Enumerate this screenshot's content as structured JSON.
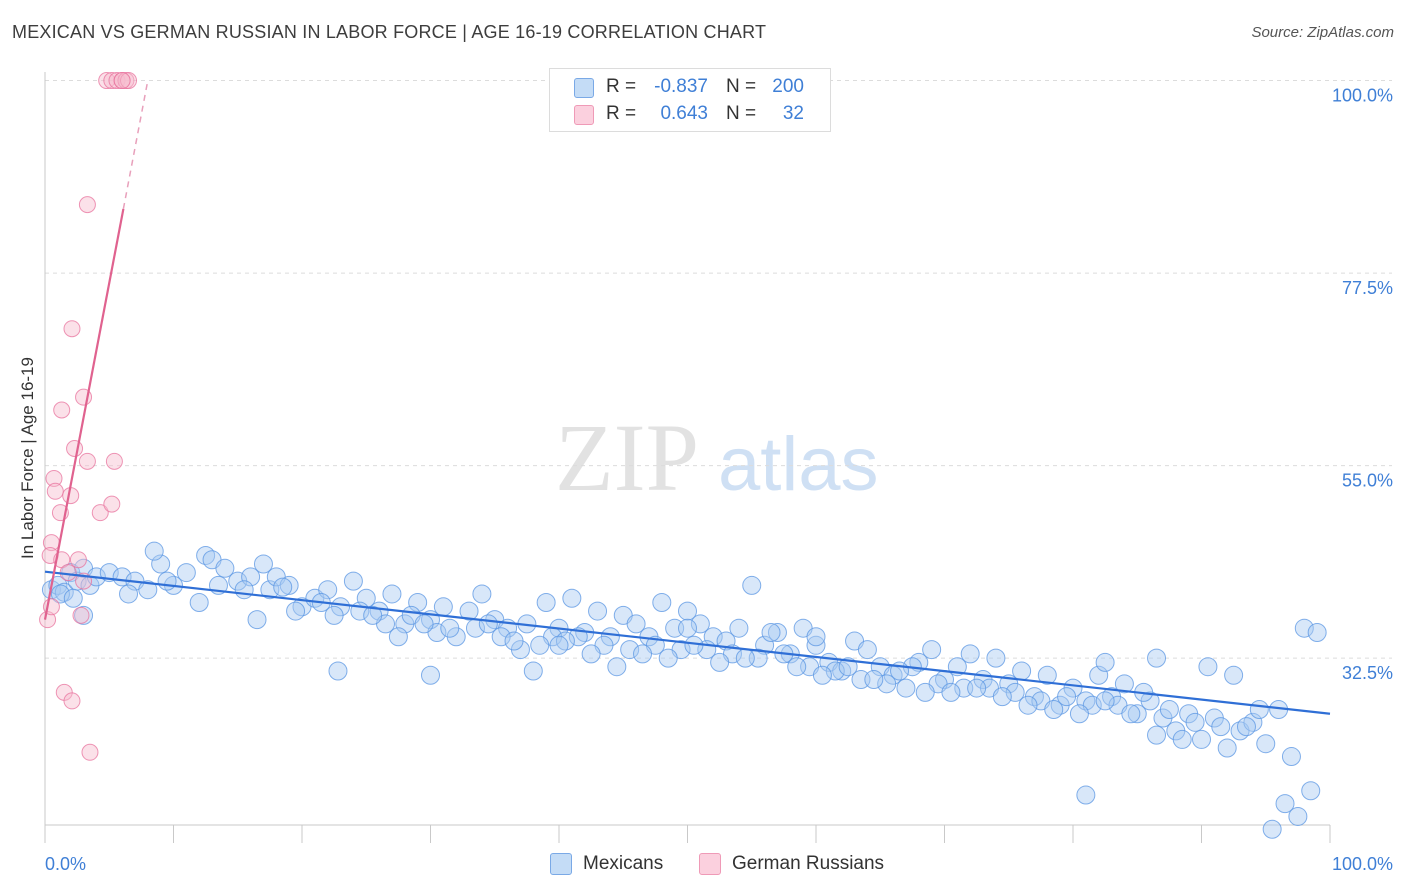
{
  "header": {
    "title": "MEXICAN VS GERMAN RUSSIAN IN LABOR FORCE | AGE 16-19 CORRELATION CHART",
    "source": "Source: ZipAtlas.com"
  },
  "watermark": {
    "zip": "ZIP",
    "atlas": "atlas"
  },
  "legend_stats": [
    {
      "r_label": "R =",
      "r_value": "-0.837",
      "n_label": "N =",
      "n_value": "200",
      "color": "#a9c9f2"
    },
    {
      "r_label": "R =",
      "r_value": "0.643",
      "n_label": "N =",
      "n_value": "32",
      "color": "#f7bccf"
    }
  ],
  "legend": [
    {
      "label": "Mexicans",
      "color": "#a9c9f2"
    },
    {
      "label": "German Russians",
      "color": "#f7bccf"
    }
  ],
  "chart_data": {
    "type": "scatter",
    "title": "MEXICAN VS GERMAN RUSSIAN IN LABOR FORCE | AGE 16-19 CORRELATION CHART",
    "xlabel": "",
    "ylabel": "In Labor Force | Age 16-19",
    "xlim": [
      0,
      100
    ],
    "ylim": [
      13,
      101
    ],
    "x_tick_labels": [
      "0.0%",
      "100.0%"
    ],
    "y_tick_values": [
      32.5,
      55.0,
      77.5,
      100.0
    ],
    "y_tick_labels": [
      "32.5%",
      "55.0%",
      "77.5%",
      "100.0%"
    ],
    "grid": "horizontal dashed",
    "legend_position": "bottom-center",
    "colors": {
      "mexicans": "#5a96e3",
      "mexicans_fill": "#a9c9f2",
      "german_russians": "#e8739d",
      "german_russians_fill": "#f7bccf"
    },
    "series": [
      {
        "name": "Mexicans",
        "trendline": {
          "x": [
            0,
            100
          ],
          "y": [
            42.6,
            26.0
          ]
        },
        "points": [
          [
            0.5,
            40.5
          ],
          [
            1.0,
            41.0
          ],
          [
            1.5,
            40.2
          ],
          [
            2.0,
            42.5
          ],
          [
            2.5,
            41.5
          ],
          [
            3.0,
            43.0
          ],
          [
            3.5,
            41.0
          ],
          [
            4.0,
            42.0
          ],
          [
            5.0,
            42.5
          ],
          [
            6.0,
            42.0
          ],
          [
            7.0,
            41.5
          ],
          [
            8.0,
            40.5
          ],
          [
            9.0,
            43.5
          ],
          [
            10.0,
            41.0
          ],
          [
            8.5,
            45.0
          ],
          [
            11.0,
            42.5
          ],
          [
            12.0,
            39.0
          ],
          [
            12.5,
            44.5
          ],
          [
            13.0,
            44.0
          ],
          [
            13.5,
            41.0
          ],
          [
            14.0,
            43.0
          ],
          [
            15.0,
            41.5
          ],
          [
            16.0,
            42.0
          ],
          [
            17.0,
            43.5
          ],
          [
            17.5,
            40.5
          ],
          [
            18.0,
            42.0
          ],
          [
            19.0,
            41.0
          ],
          [
            20.0,
            38.5
          ],
          [
            21.0,
            39.5
          ],
          [
            22.0,
            40.5
          ],
          [
            23.0,
            38.5
          ],
          [
            24.0,
            41.5
          ],
          [
            25.0,
            39.5
          ],
          [
            26.0,
            38.0
          ],
          [
            27.0,
            40.0
          ],
          [
            28.0,
            36.5
          ],
          [
            29.0,
            39.0
          ],
          [
            30.0,
            37.0
          ],
          [
            31.0,
            38.5
          ],
          [
            32.0,
            35.0
          ],
          [
            33.0,
            38.0
          ],
          [
            34.0,
            40.0
          ],
          [
            35.0,
            37.0
          ],
          [
            36.0,
            36.0
          ],
          [
            37.0,
            33.5
          ],
          [
            38.0,
            31.0
          ],
          [
            39.0,
            39.0
          ],
          [
            40.0,
            36.0
          ],
          [
            41.0,
            39.5
          ],
          [
            42.0,
            35.5
          ],
          [
            43.0,
            38.0
          ],
          [
            44.0,
            35.0
          ],
          [
            45.0,
            37.5
          ],
          [
            46.0,
            36.5
          ],
          [
            47.0,
            35.0
          ],
          [
            48.0,
            39.0
          ],
          [
            49.0,
            36.0
          ],
          [
            50.0,
            38.0
          ],
          [
            51.0,
            36.5
          ],
          [
            52.0,
            35.0
          ],
          [
            53.0,
            34.5
          ],
          [
            54.0,
            36.0
          ],
          [
            55.0,
            41.0
          ],
          [
            56.0,
            34.0
          ],
          [
            57.0,
            35.5
          ],
          [
            58.0,
            33.0
          ],
          [
            59.0,
            36.0
          ],
          [
            60.0,
            34.0
          ],
          [
            61.0,
            32.0
          ],
          [
            62.0,
            31.0
          ],
          [
            63.0,
            34.5
          ],
          [
            64.0,
            33.5
          ],
          [
            65.0,
            31.5
          ],
          [
            66.0,
            30.5
          ],
          [
            67.0,
            29.0
          ],
          [
            68.0,
            32.0
          ],
          [
            69.0,
            33.5
          ],
          [
            70.0,
            30.0
          ],
          [
            71.0,
            31.5
          ],
          [
            72.0,
            33.0
          ],
          [
            73.0,
            30.0
          ],
          [
            74.0,
            32.5
          ],
          [
            75.0,
            29.5
          ],
          [
            76.0,
            31.0
          ],
          [
            77.0,
            28.0
          ],
          [
            78.0,
            30.5
          ],
          [
            79.0,
            27.0
          ],
          [
            80.0,
            29.0
          ],
          [
            81.0,
            27.5
          ],
          [
            82.0,
            30.5
          ],
          [
            83.0,
            28.0
          ],
          [
            84.0,
            29.5
          ],
          [
            85.0,
            26.0
          ],
          [
            86.0,
            27.5
          ],
          [
            87.0,
            25.5
          ],
          [
            88.0,
            24.0
          ],
          [
            89.0,
            26.0
          ],
          [
            90.0,
            23.0
          ],
          [
            91.0,
            25.5
          ],
          [
            92.0,
            22.0
          ],
          [
            93.0,
            24.0
          ],
          [
            94.0,
            25.0
          ],
          [
            95.0,
            22.5
          ],
          [
            96.0,
            26.5
          ],
          [
            97.0,
            21.0
          ],
          [
            98.0,
            36.0
          ],
          [
            99.0,
            35.5
          ],
          [
            90.5,
            31.5
          ],
          [
            92.5,
            30.5
          ],
          [
            86.5,
            32.5
          ],
          [
            82.5,
            32.0
          ],
          [
            81.0,
            16.5
          ],
          [
            96.5,
            15.5
          ],
          [
            97.5,
            14.0
          ],
          [
            98.5,
            17.0
          ],
          [
            95.5,
            12.5
          ],
          [
            3.0,
            37.5
          ],
          [
            1.2,
            40.0
          ],
          [
            2.2,
            39.5
          ],
          [
            6.5,
            40.0
          ],
          [
            9.5,
            41.5
          ],
          [
            15.5,
            40.5
          ],
          [
            18.5,
            40.8
          ],
          [
            21.5,
            39.0
          ],
          [
            24.5,
            38.0
          ],
          [
            26.5,
            36.5
          ],
          [
            28.5,
            37.5
          ],
          [
            30.5,
            35.5
          ],
          [
            33.5,
            36.0
          ],
          [
            35.5,
            35.0
          ],
          [
            37.5,
            36.5
          ],
          [
            39.5,
            35.0
          ],
          [
            41.5,
            35.0
          ],
          [
            43.5,
            34.0
          ],
          [
            45.5,
            33.5
          ],
          [
            47.5,
            34.0
          ],
          [
            49.5,
            33.5
          ],
          [
            51.5,
            33.5
          ],
          [
            53.5,
            33.0
          ],
          [
            55.5,
            32.5
          ],
          [
            57.5,
            33.0
          ],
          [
            59.5,
            31.5
          ],
          [
            61.5,
            31.0
          ],
          [
            63.5,
            30.0
          ],
          [
            65.5,
            29.5
          ],
          [
            67.5,
            31.5
          ],
          [
            69.5,
            29.5
          ],
          [
            71.5,
            29.0
          ],
          [
            73.5,
            29.0
          ],
          [
            75.5,
            28.5
          ],
          [
            77.5,
            27.5
          ],
          [
            79.5,
            28.0
          ],
          [
            81.5,
            27.0
          ],
          [
            83.5,
            27.0
          ],
          [
            85.5,
            28.5
          ],
          [
            87.5,
            26.5
          ],
          [
            89.5,
            25.0
          ],
          [
            91.5,
            24.5
          ],
          [
            93.5,
            24.5
          ],
          [
            94.5,
            26.5
          ],
          [
            16.5,
            37.0
          ],
          [
            19.5,
            38.0
          ],
          [
            22.5,
            37.5
          ],
          [
            25.5,
            37.5
          ],
          [
            27.5,
            35.0
          ],
          [
            29.5,
            36.5
          ],
          [
            31.5,
            36.0
          ],
          [
            34.5,
            36.5
          ],
          [
            36.5,
            34.5
          ],
          [
            38.5,
            34.0
          ],
          [
            40.5,
            34.5
          ],
          [
            42.5,
            33.0
          ],
          [
            44.5,
            31.5
          ],
          [
            46.5,
            33.0
          ],
          [
            48.5,
            32.5
          ],
          [
            50.5,
            34.0
          ],
          [
            52.5,
            32.0
          ],
          [
            54.5,
            32.5
          ],
          [
            56.5,
            35.5
          ],
          [
            58.5,
            31.5
          ],
          [
            60.5,
            30.5
          ],
          [
            62.5,
            31.5
          ],
          [
            64.5,
            30.0
          ],
          [
            66.5,
            31.0
          ],
          [
            68.5,
            28.5
          ],
          [
            70.5,
            28.5
          ],
          [
            72.5,
            29.0
          ],
          [
            74.5,
            28.0
          ],
          [
            76.5,
            27.0
          ],
          [
            78.5,
            26.5
          ],
          [
            80.5,
            26.0
          ],
          [
            82.5,
            27.5
          ],
          [
            84.5,
            26.0
          ],
          [
            86.5,
            23.5
          ],
          [
            88.5,
            23.0
          ],
          [
            22.8,
            31.0
          ],
          [
            30.0,
            30.5
          ],
          [
            40.0,
            34.0
          ],
          [
            50.0,
            36.0
          ],
          [
            60.0,
            35.0
          ]
        ]
      },
      {
        "name": "German Russians",
        "trendline": {
          "x": [
            0.0,
            6.1
          ],
          "y": [
            37.0,
            85.0
          ]
        },
        "trendline_dashed": {
          "x": [
            6.1,
            8.0
          ],
          "y": [
            85.0,
            100.0
          ]
        },
        "points": [
          [
            4.8,
            100
          ],
          [
            5.2,
            100
          ],
          [
            5.6,
            100
          ],
          [
            6.0,
            100
          ],
          [
            6.3,
            100
          ],
          [
            6.5,
            100
          ],
          [
            6.0,
            100
          ],
          [
            3.3,
            85.5
          ],
          [
            2.1,
            71.0
          ],
          [
            3.0,
            63.0
          ],
          [
            1.3,
            61.5
          ],
          [
            2.3,
            57.0
          ],
          [
            3.3,
            55.5
          ],
          [
            5.4,
            55.5
          ],
          [
            0.7,
            53.5
          ],
          [
            0.8,
            52.0
          ],
          [
            2.0,
            51.5
          ],
          [
            1.2,
            49.5
          ],
          [
            4.3,
            49.5
          ],
          [
            5.2,
            50.5
          ],
          [
            0.5,
            46.0
          ],
          [
            0.4,
            44.5
          ],
          [
            1.3,
            44.0
          ],
          [
            2.6,
            44.0
          ],
          [
            1.8,
            42.5
          ],
          [
            3.0,
            41.5
          ],
          [
            0.2,
            37.0
          ],
          [
            2.8,
            37.5
          ],
          [
            1.5,
            28.5
          ],
          [
            2.1,
            27.5
          ],
          [
            3.5,
            21.5
          ],
          [
            0.5,
            38.5
          ]
        ]
      }
    ]
  }
}
